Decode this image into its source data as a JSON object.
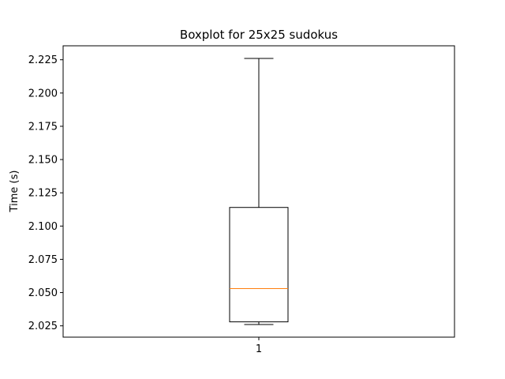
{
  "chart_data": {
    "type": "boxplot",
    "title": "Boxplot for 25x25 sudokus",
    "xlabel": "",
    "ylabel": "Time (s)",
    "categories": [
      "1"
    ],
    "boxes": [
      {
        "category": "1",
        "whisker_low": 2.026,
        "q1": 2.028,
        "median": 2.053,
        "q3": 2.114,
        "whisker_high": 2.226
      }
    ],
    "ylim": [
      2.0165,
      2.2355
    ],
    "yticks": [
      2.025,
      2.05,
      2.075,
      2.1,
      2.125,
      2.15,
      2.175,
      2.2,
      2.225
    ],
    "ytick_labels": [
      "2.025",
      "2.050",
      "2.075",
      "2.100",
      "2.125",
      "2.150",
      "2.175",
      "2.200",
      "2.225"
    ],
    "grid": false,
    "colors": {
      "box": "#000000",
      "median": "#ff7f0e"
    }
  }
}
